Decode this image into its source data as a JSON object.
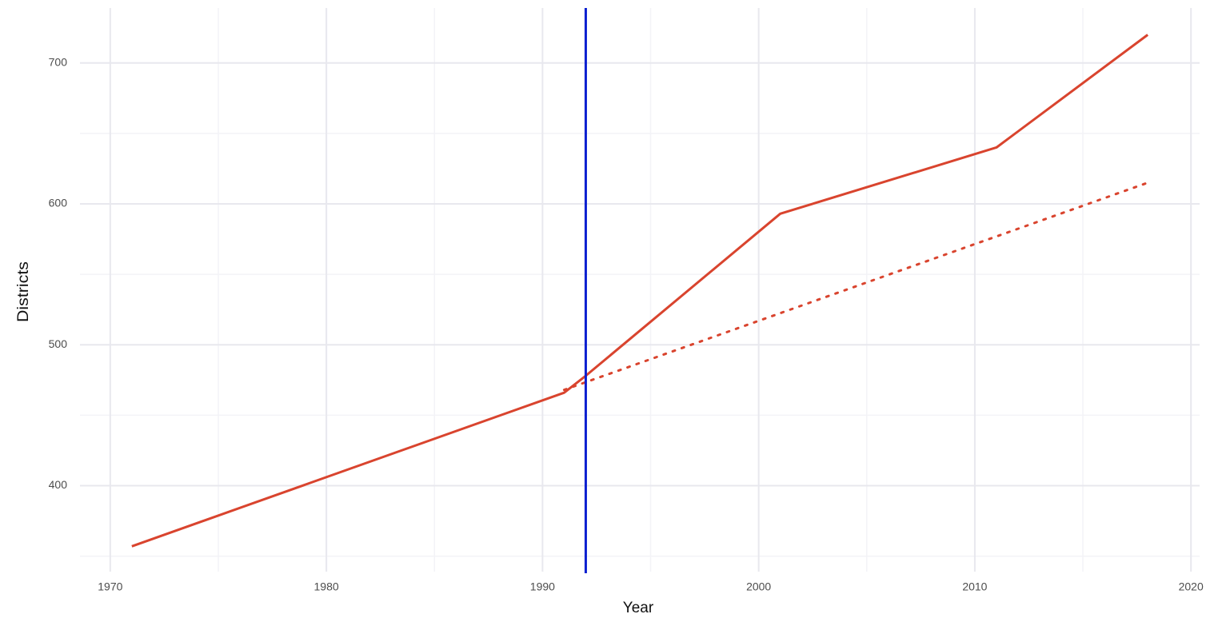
{
  "chart_data": {
    "type": "line",
    "x_label": "Year",
    "y_label": "Districts",
    "series": [
      {
        "color": "#d9442e",
        "linestyle": "solid",
        "x": [
          1971,
          1991,
          1992,
          2001,
          2011,
          2018
        ],
        "values": [
          357,
          466,
          478,
          593,
          640,
          720
        ]
      },
      {
        "color": "#d9442e",
        "linestyle": "dotted",
        "x": [
          1991,
          2018
        ],
        "values": [
          468,
          615
        ]
      }
    ],
    "vline": {
      "x": 1992,
      "color": "#0a1fd0"
    },
    "xlim": [
      1968.6,
      2020.4
    ],
    "ylim": [
      339,
      739
    ],
    "xticks": [
      1970,
      1980,
      1990,
      2000,
      2010,
      2020
    ],
    "yticks": [
      400,
      500,
      600,
      700
    ],
    "xminor": [
      1975,
      1985,
      1995,
      2005,
      2015
    ],
    "yminor": [
      350,
      450,
      550,
      650
    ],
    "grid": true
  }
}
